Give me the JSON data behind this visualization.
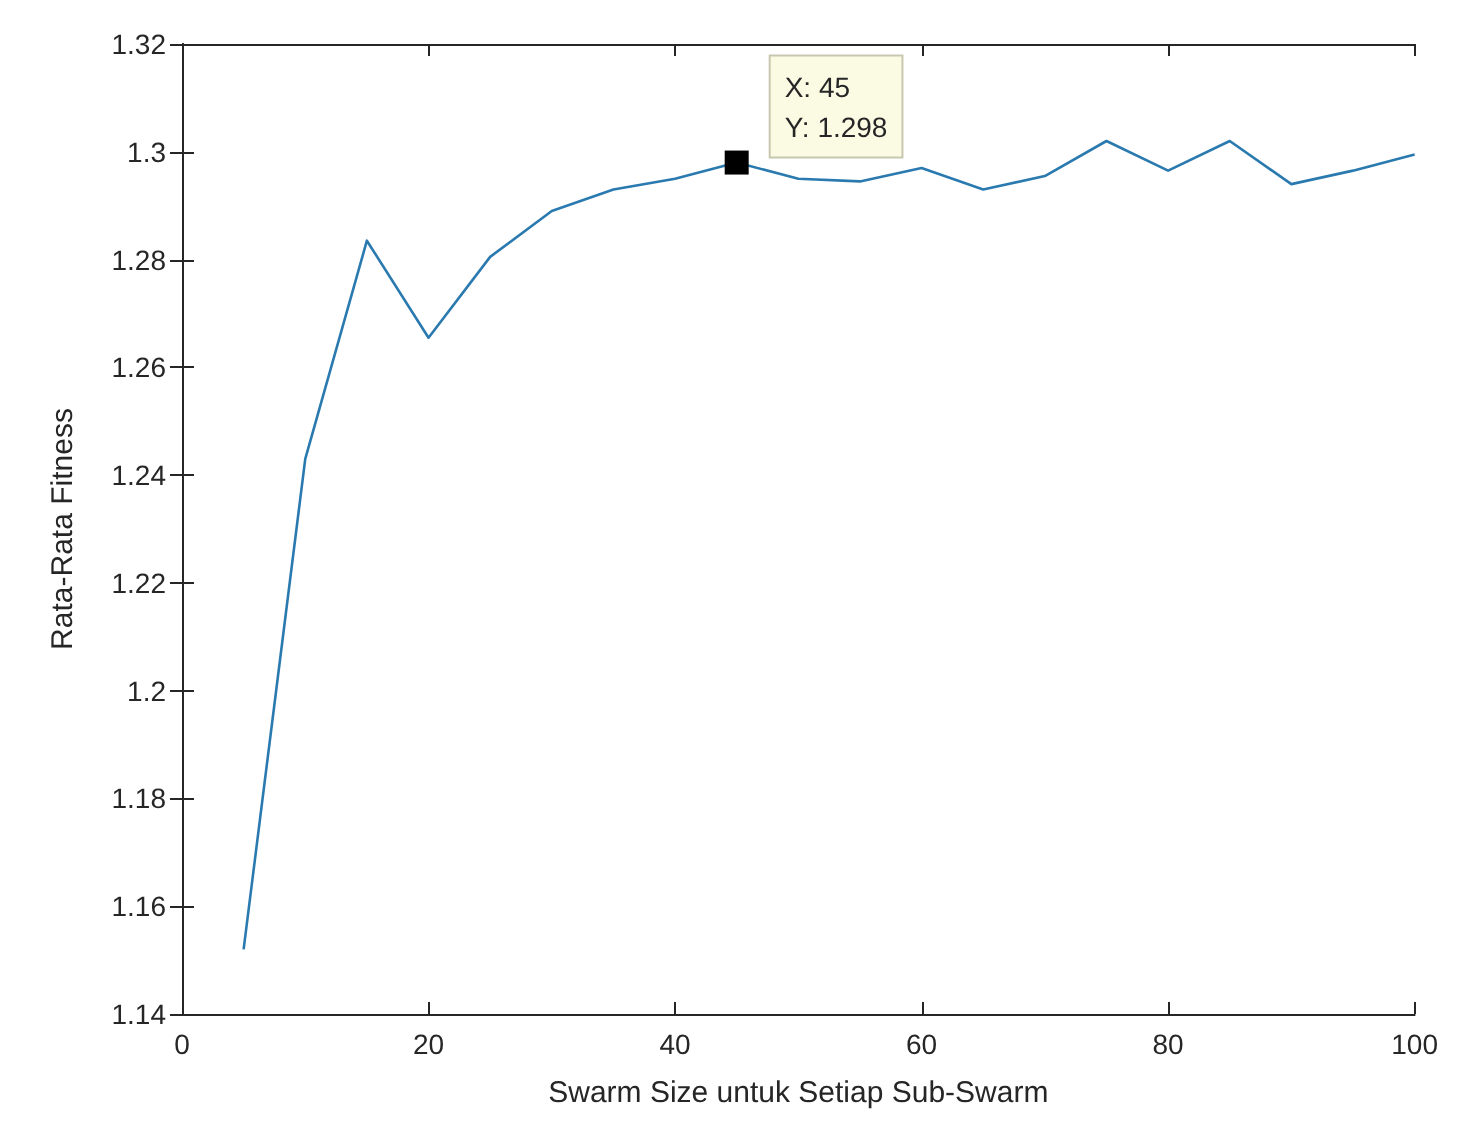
{
  "chart_data": {
    "type": "line",
    "xlabel": "Swarm Size untuk Setiap Sub-Swarm",
    "ylabel": "Rata-Rata Fitness",
    "x": [
      5,
      10,
      15,
      20,
      25,
      30,
      35,
      40,
      45,
      50,
      55,
      60,
      65,
      70,
      75,
      80,
      85,
      90,
      95,
      100
    ],
    "series": [
      {
        "color": "#2a7ab0",
        "values": [
          1.152,
          1.243,
          1.2835,
          1.2655,
          1.2805,
          1.289,
          1.293,
          1.295,
          1.298,
          1.295,
          1.2945,
          1.297,
          1.293,
          1.2955,
          1.302,
          1.2965,
          1.302,
          1.294,
          1.2965,
          1.2995
        ]
      }
    ],
    "xlim": [
      0,
      100
    ],
    "xticks": [
      0,
      20,
      40,
      60,
      80,
      100
    ],
    "ylim": [
      1.14,
      1.32
    ],
    "yticks": [
      1.14,
      1.16,
      1.18,
      1.2,
      1.22,
      1.24,
      1.26,
      1.28,
      1.3,
      1.32
    ],
    "grid": false,
    "marker": "none",
    "line_style": "solid",
    "annotations": [
      {
        "text": "X: 45\nY: 1.298",
        "x": 45,
        "y": 1.298
      }
    ]
  }
}
